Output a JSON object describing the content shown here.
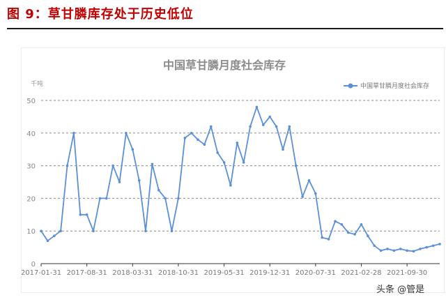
{
  "figure": {
    "label": "图 9：草甘膦库存处于历史低位"
  },
  "watermark": "头条 @管是",
  "chart_data": {
    "type": "line",
    "title": "中国草甘膦月度社会库存",
    "ylabel": "千吨",
    "xlabel": "",
    "ylim": [
      0,
      50
    ],
    "yticks": [
      0,
      10,
      20,
      30,
      40,
      50
    ],
    "grid": true,
    "legend_position": "top-right",
    "series_color": "#5b8fd6",
    "x_tick_labels": [
      "2017-01-31",
      "2017-08-31",
      "2018-03-31",
      "2018-10-31",
      "2019-05-31",
      "2019-12-31",
      "2020-07-31",
      "2021-02-28",
      "2021-09-30"
    ],
    "series": [
      {
        "name": "中国草甘膦月度社会库存",
        "values": [
          10,
          7,
          8.5,
          10,
          30,
          40,
          15,
          15,
          10,
          20,
          20,
          30,
          25,
          40,
          35,
          25.5,
          10,
          30.5,
          22.5,
          20,
          10,
          20,
          38.5,
          40,
          38,
          36.5,
          42,
          34,
          31,
          24,
          37,
          31,
          42,
          48,
          42.5,
          45,
          42,
          35,
          42,
          30,
          20.5,
          25.5,
          21.5,
          8,
          7.5,
          13,
          12,
          9.5,
          9,
          12,
          8.5,
          5.5,
          4,
          4.5,
          4,
          4.5,
          4,
          3.8,
          4.5,
          5,
          5.5,
          6
        ]
      }
    ]
  }
}
